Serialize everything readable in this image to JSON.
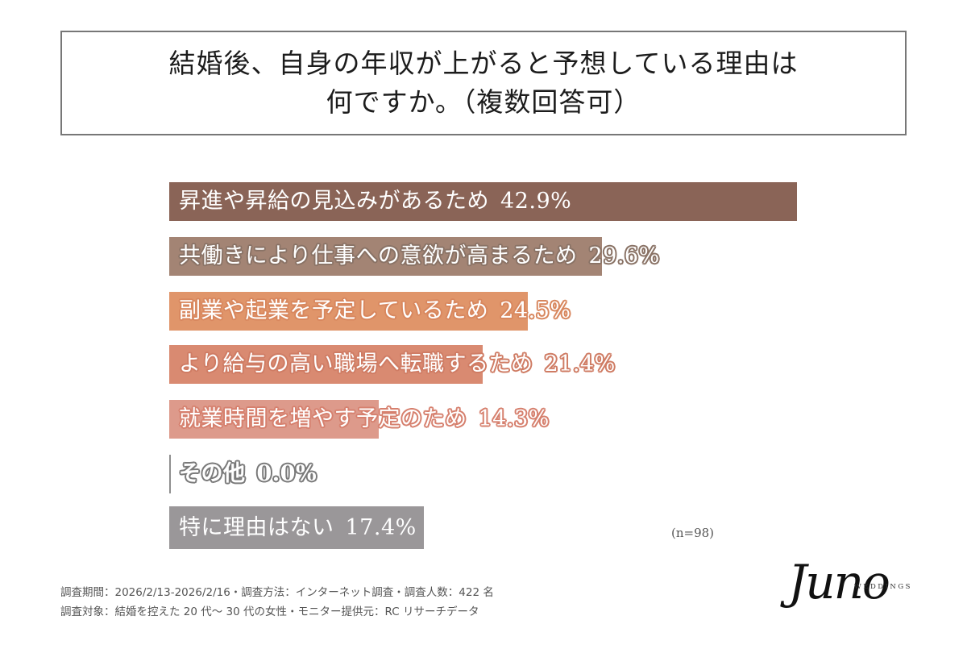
{
  "title": {
    "line1": "結婚後、自身の年収が上がると予想している理由は",
    "line2": "何ですか。（複数回答可）"
  },
  "chart_data": {
    "type": "bar",
    "orientation": "horizontal",
    "title": "結婚後、自身の年収が上がると予想している理由は何ですか。（複数回答可）",
    "categories": [
      "昇進や昇給の見込みがあるため",
      "共働きにより仕事への意欲が高まるため",
      "副業や起業を予定しているため",
      "より給与の高い職場へ転職するため",
      "就業時間を増やす予定のため",
      "その他",
      "特に理由はない"
    ],
    "values": [
      42.9,
      29.6,
      24.5,
      21.4,
      14.3,
      0.0,
      17.4
    ],
    "unit": "%",
    "colors": [
      "#8a6457",
      "#a38474",
      "#e0956a",
      "#d98a71",
      "#dd9a8b",
      "#8f8f8f",
      "#9a9799"
    ],
    "xlabel": "",
    "ylabel": "",
    "grid": false,
    "legend": "none",
    "sample_size": "n=98"
  },
  "bars": [
    {
      "label": "昇進や昇給の見込みがあるため",
      "value_text": "42.9%",
      "value": 42.9,
      "color": "#8a6457",
      "stroke": "#8a6457"
    },
    {
      "label": "共働きにより仕事への意欲が高まるため",
      "value_text": "29.6%",
      "value": 29.6,
      "color": "#a38474",
      "stroke": "#8a7366"
    },
    {
      "label": "副業や起業を予定しているため",
      "value_text": "24.5%",
      "value": 24.5,
      "color": "#e0956a",
      "stroke": "#d8875e"
    },
    {
      "label": "より給与の高い職場へ転職するため",
      "value_text": "21.4%",
      "value": 21.4,
      "color": "#d98a71",
      "stroke": "#cf7c64"
    },
    {
      "label": "就業時間を増やす予定のため",
      "value_text": "14.3%",
      "value": 14.3,
      "color": "#dd9a8b",
      "stroke": "#d6806e"
    },
    {
      "label": "その他",
      "value_text": "0.0%",
      "value": 0.0,
      "color": "#8f8f8f",
      "stroke": "#7a7a7a"
    },
    {
      "label": "特に理由はない",
      "value_text": "17.4%",
      "value": 17.4,
      "color": "#9a9799",
      "stroke": "#9a9799"
    }
  ],
  "note": "(n=98)",
  "footer": {
    "line1": "調査期間：2026/2/13-2026/2/16・調査方法：インターネット調査・調査人数：422 名",
    "line2": "調査対象：結婚を控えた 20 代～ 30 代の女性・モニター提供元：RC リサーチデータ"
  },
  "logo": {
    "script": "Juno",
    "sub": "WEDDINGS"
  }
}
